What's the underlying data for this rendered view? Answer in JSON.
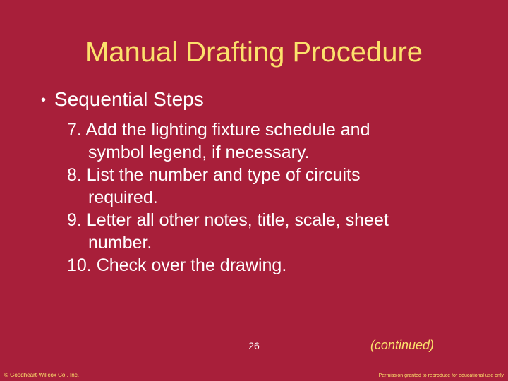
{
  "title": "Manual Drafting Procedure",
  "subtitle": "Sequential Steps",
  "steps": {
    "s7a": "7. Add the lighting fixture schedule and",
    "s7b": "symbol legend, if necessary.",
    "s8a": "8. List the number and type of circuits",
    "s8b": "required.",
    "s9a": "9. Letter all other notes, title, scale, sheet",
    "s9b": "number.",
    "s10": "10. Check over the drawing."
  },
  "page_number": "26",
  "continued": "(continued)",
  "copyright": "© Goodheart-Willcox Co., Inc.",
  "permission": "Permission granted to reproduce for educational use only",
  "colors": {
    "background": "#a81f3a",
    "title_color": "#fce16c",
    "body_text": "#ffffff",
    "accent": "#fce16c"
  },
  "typography": {
    "title_fontsize": 40,
    "subtitle_fontsize": 28,
    "body_fontsize": 25,
    "footer_fontsize": 8
  }
}
